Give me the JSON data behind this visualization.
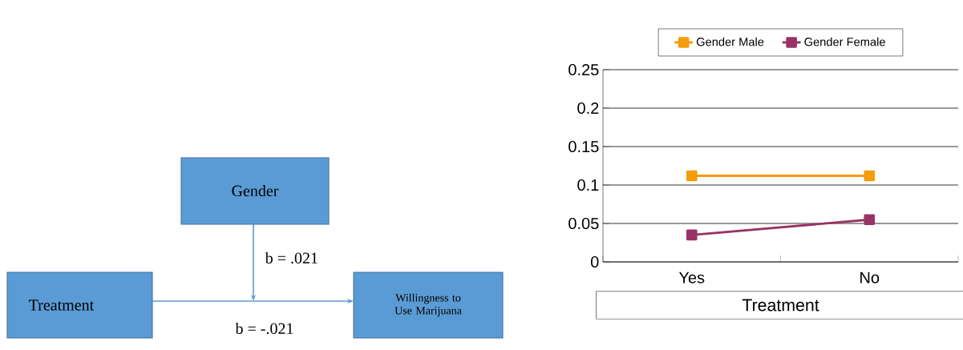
{
  "chart_data": [
    {
      "type": "other",
      "annotations": [
        "Gender",
        "Treatment",
        "Willingness to Use Marijuana",
        "b = .021",
        "b = -.021"
      ]
    },
    {
      "type": "line",
      "xlabel": "Treatment",
      "categories": [
        "Yes",
        "No"
      ],
      "series": [
        {
          "name": "Gender Male",
          "color": "#f59c0a",
          "values": [
            0.112,
            0.112
          ]
        },
        {
          "name": "Gender Female",
          "color": "#993366",
          "values": [
            0.035,
            0.055
          ]
        }
      ],
      "ylim": [
        0,
        0.25
      ],
      "yticks": [
        0,
        0.05,
        0.1,
        0.15,
        0.2,
        0.25
      ],
      "grid": "y",
      "legend": "top",
      "marker": "square",
      "line_style": "solid"
    }
  ]
}
